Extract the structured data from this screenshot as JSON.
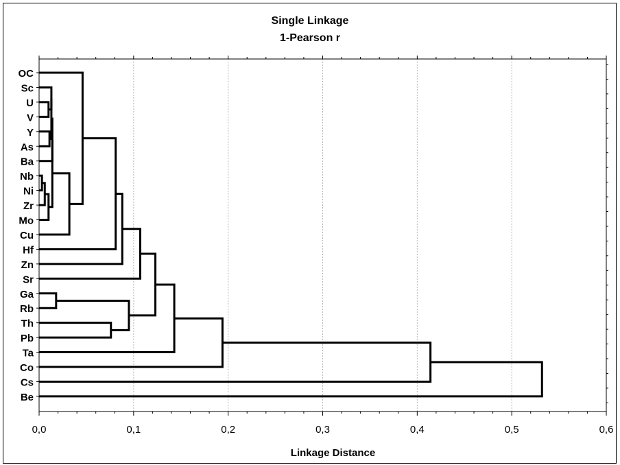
{
  "chart_data": {
    "type": "dendrogram",
    "title": "Single Linkage",
    "subtitle": "1-Pearson r",
    "xlabel": "Linkage Distance",
    "xlim": [
      0.0,
      0.6
    ],
    "x_ticks": [
      0.0,
      0.1,
      0.2,
      0.3,
      0.4,
      0.5,
      0.6
    ],
    "x_tick_labels": [
      "0,0",
      "0,1",
      "0,2",
      "0,3",
      "0,4",
      "0,5",
      "0,6"
    ],
    "grid": "vertical-dotted",
    "leaves": [
      "OC",
      "Sc",
      "U",
      "V",
      "Y",
      "As",
      "Ba",
      "Nb",
      "Ni",
      "Zr",
      "Mo",
      "Cu",
      "Hf",
      "Zn",
      "Sr",
      "Ga",
      "Rb",
      "Th",
      "Pb",
      "Ta",
      "Co",
      "Cs",
      "Be"
    ],
    "merges": [
      {
        "a": "Nb",
        "b": "Ni",
        "height": 0.003
      },
      {
        "a": "U",
        "b": "V",
        "height": 0.01
      },
      {
        "a": "Y",
        "b": "As",
        "height": 0.011
      },
      {
        "a": "Nb+Ni",
        "b": "Zr",
        "height": 0.006
      },
      {
        "a": "Nb+Ni+Zr",
        "b": "Mo",
        "height": 0.01
      },
      {
        "a": "Sc",
        "b": "U+V",
        "height": 0.013
      },
      {
        "a": "Sc+U+V",
        "b": "Y+As",
        "height": 0.013
      },
      {
        "a": "Sc+U+V+Y+As",
        "b": "Ba",
        "height": 0.014
      },
      {
        "a": "Ba-group",
        "b": "Nb+Ni+Zr+Mo",
        "height": 0.014
      },
      {
        "a": "Sc..Mo",
        "b": "Cu",
        "height": 0.032
      },
      {
        "a": "OC",
        "b": "Sc..Cu",
        "height": 0.046
      },
      {
        "a": "Ga",
        "b": "Rb",
        "height": 0.018
      },
      {
        "a": "Th",
        "b": "Pb",
        "height": 0.076
      },
      {
        "a": "OC..Cu",
        "b": "Hf",
        "height": 0.081
      },
      {
        "a": "OC..Hf",
        "b": "Zn",
        "height": 0.088
      },
      {
        "a": "Ga+Rb",
        "b": "Th+Pb",
        "height": 0.095
      },
      {
        "a": "OC..Zn",
        "b": "Sr",
        "height": 0.107
      },
      {
        "a": "OC..Sr",
        "b": "Ga..Pb",
        "height": 0.123
      },
      {
        "a": "OC..Pb",
        "b": "Ta",
        "height": 0.143
      },
      {
        "a": "OC..Ta",
        "b": "Co",
        "height": 0.194
      },
      {
        "a": "OC..Co",
        "b": "Cs",
        "height": 0.414
      },
      {
        "a": "OC..Cs",
        "b": "Be",
        "height": 0.532
      }
    ]
  }
}
